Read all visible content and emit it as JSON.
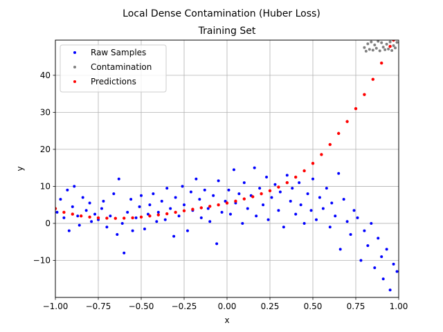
{
  "chart_data": {
    "type": "scatter",
    "suptitle": "Local Dense Contamination (Huber Loss)",
    "title": "Training Set",
    "xlabel": "x",
    "ylabel": "y",
    "xlim": [
      -1.0,
      1.0
    ],
    "ylim": [
      -20,
      49.5
    ],
    "grid": true,
    "legend_position": "top-left",
    "x_ticks": [
      -1.0,
      -0.75,
      -0.5,
      -0.25,
      0.0,
      0.25,
      0.5,
      0.75,
      1.0
    ],
    "x_tick_labels": [
      "−1.00",
      "−0.75",
      "−0.50",
      "−0.25",
      "0.00",
      "0.25",
      "0.50",
      "0.75",
      "1.00"
    ],
    "y_ticks": [
      -10,
      0,
      10,
      20,
      30,
      40
    ],
    "y_tick_labels": [
      "−10",
      "0",
      "10",
      "20",
      "30",
      "40"
    ],
    "series": [
      {
        "name": "Raw Samples",
        "color": "#0000ff",
        "points": [
          [
            -0.99,
            3.0
          ],
          [
            -0.97,
            6.5
          ],
          [
            -0.95,
            1.5
          ],
          [
            -0.93,
            9.0
          ],
          [
            -0.92,
            -2.0
          ],
          [
            -0.9,
            4.5
          ],
          [
            -0.89,
            10.0
          ],
          [
            -0.87,
            2.0
          ],
          [
            -0.86,
            -0.5
          ],
          [
            -0.84,
            7.0
          ],
          [
            -0.82,
            3.5
          ],
          [
            -0.8,
            5.5
          ],
          [
            -0.79,
            0.5
          ],
          [
            -0.77,
            2.5
          ],
          [
            -0.75,
            1.0
          ],
          [
            -0.73,
            4.0
          ],
          [
            -0.72,
            6.0
          ],
          [
            -0.7,
            -1.0
          ],
          [
            -0.68,
            2.0
          ],
          [
            -0.66,
            8.0
          ],
          [
            -0.64,
            -3.0
          ],
          [
            -0.63,
            12.0
          ],
          [
            -0.61,
            0.0
          ],
          [
            -0.6,
            -8.0
          ],
          [
            -0.58,
            3.0
          ],
          [
            -0.56,
            6.5
          ],
          [
            -0.55,
            -2.0
          ],
          [
            -0.53,
            1.5
          ],
          [
            -0.51,
            4.5
          ],
          [
            -0.5,
            7.5
          ],
          [
            -0.48,
            -1.5
          ],
          [
            -0.46,
            2.5
          ],
          [
            -0.45,
            5.0
          ],
          [
            -0.43,
            8.0
          ],
          [
            -0.41,
            0.5
          ],
          [
            -0.4,
            3.0
          ],
          [
            -0.38,
            6.0
          ],
          [
            -0.36,
            1.0
          ],
          [
            -0.35,
            9.5
          ],
          [
            -0.33,
            4.0
          ],
          [
            -0.31,
            -3.5
          ],
          [
            -0.3,
            7.0
          ],
          [
            -0.28,
            2.0
          ],
          [
            -0.26,
            10.0
          ],
          [
            -0.25,
            5.0
          ],
          [
            -0.23,
            -2.0
          ],
          [
            -0.21,
            8.5
          ],
          [
            -0.2,
            3.5
          ],
          [
            -0.18,
            12.0
          ],
          [
            -0.16,
            6.5
          ],
          [
            -0.15,
            1.5
          ],
          [
            -0.13,
            9.0
          ],
          [
            -0.11,
            4.0
          ],
          [
            -0.1,
            0.5
          ],
          [
            -0.08,
            7.5
          ],
          [
            -0.06,
            -5.5
          ],
          [
            -0.05,
            11.5
          ],
          [
            -0.03,
            3.0
          ],
          [
            -0.01,
            6.0
          ],
          [
            0.01,
            9.0
          ],
          [
            0.02,
            2.5
          ],
          [
            0.04,
            14.5
          ],
          [
            0.05,
            5.5
          ],
          [
            0.07,
            8.0
          ],
          [
            0.09,
            0.0
          ],
          [
            0.1,
            11.0
          ],
          [
            0.12,
            4.0
          ],
          [
            0.14,
            7.5
          ],
          [
            0.16,
            15.0
          ],
          [
            0.17,
            2.0
          ],
          [
            0.19,
            9.5
          ],
          [
            0.21,
            5.0
          ],
          [
            0.23,
            12.5
          ],
          [
            0.24,
            1.0
          ],
          [
            0.26,
            7.0
          ],
          [
            0.28,
            10.5
          ],
          [
            0.3,
            3.5
          ],
          [
            0.31,
            8.5
          ],
          [
            0.33,
            -1.0
          ],
          [
            0.35,
            13.0
          ],
          [
            0.37,
            6.0
          ],
          [
            0.38,
            9.5
          ],
          [
            0.4,
            2.5
          ],
          [
            0.42,
            11.0
          ],
          [
            0.43,
            5.0
          ],
          [
            0.45,
            0.0
          ],
          [
            0.47,
            8.0
          ],
          [
            0.49,
            3.5
          ],
          [
            0.5,
            12.0
          ],
          [
            0.52,
            1.0
          ],
          [
            0.54,
            7.0
          ],
          [
            0.56,
            4.0
          ],
          [
            0.58,
            9.5
          ],
          [
            0.6,
            -1.0
          ],
          [
            0.61,
            5.5
          ],
          [
            0.63,
            2.0
          ],
          [
            0.65,
            13.5
          ],
          [
            0.66,
            -7.0
          ],
          [
            0.68,
            6.5
          ],
          [
            0.7,
            0.5
          ],
          [
            0.72,
            -3.0
          ],
          [
            0.74,
            3.5
          ],
          [
            0.76,
            1.5
          ],
          [
            0.78,
            -10.0
          ],
          [
            0.8,
            -2.0
          ],
          [
            0.82,
            -6.0
          ],
          [
            0.84,
            0.0
          ],
          [
            0.86,
            -12.0
          ],
          [
            0.88,
            -4.0
          ],
          [
            0.9,
            -9.0
          ],
          [
            0.91,
            -15.0
          ],
          [
            0.93,
            -7.0
          ],
          [
            0.95,
            -18.0
          ],
          [
            0.97,
            -11.0
          ],
          [
            0.99,
            -13.0
          ]
        ]
      },
      {
        "name": "Contamination",
        "color": "#808080",
        "points": [
          [
            0.8,
            47.5
          ],
          [
            0.81,
            46.5
          ],
          [
            0.82,
            48.5
          ],
          [
            0.83,
            47.0
          ],
          [
            0.84,
            49.0
          ],
          [
            0.85,
            46.8
          ],
          [
            0.86,
            48.2
          ],
          [
            0.87,
            47.3
          ],
          [
            0.88,
            49.2
          ],
          [
            0.89,
            46.6
          ],
          [
            0.9,
            48.8
          ],
          [
            0.91,
            47.6
          ],
          [
            0.92,
            46.9
          ],
          [
            0.93,
            48.4
          ],
          [
            0.94,
            47.1
          ],
          [
            0.95,
            49.0
          ],
          [
            0.96,
            46.7
          ],
          [
            0.97,
            48.0
          ],
          [
            0.98,
            47.4
          ],
          [
            0.99,
            48.9
          ]
        ]
      },
      {
        "name": "Predictions",
        "color": "#ff0000",
        "points": [
          [
            -1.0,
            4.0
          ],
          [
            -0.95,
            3.0
          ],
          [
            -0.9,
            2.5
          ],
          [
            -0.85,
            2.0
          ],
          [
            -0.8,
            1.7
          ],
          [
            -0.75,
            1.5
          ],
          [
            -0.7,
            1.4
          ],
          [
            -0.65,
            1.35
          ],
          [
            -0.6,
            1.4
          ],
          [
            -0.55,
            1.5
          ],
          [
            -0.5,
            1.7
          ],
          [
            -0.45,
            2.0
          ],
          [
            -0.4,
            2.3
          ],
          [
            -0.35,
            2.6
          ],
          [
            -0.3,
            3.0
          ],
          [
            -0.25,
            3.4
          ],
          [
            -0.2,
            3.8
          ],
          [
            -0.15,
            4.2
          ],
          [
            -0.1,
            4.6
          ],
          [
            -0.05,
            5.0
          ],
          [
            0.0,
            5.5
          ],
          [
            0.05,
            6.0
          ],
          [
            0.1,
            6.6
          ],
          [
            0.15,
            7.2
          ],
          [
            0.2,
            8.0
          ],
          [
            0.25,
            8.8
          ],
          [
            0.3,
            9.8
          ],
          [
            0.35,
            11.0
          ],
          [
            0.4,
            12.5
          ],
          [
            0.45,
            14.2
          ],
          [
            0.5,
            16.2
          ],
          [
            0.55,
            18.6
          ],
          [
            0.6,
            21.3
          ],
          [
            0.65,
            24.3
          ],
          [
            0.7,
            27.5
          ],
          [
            0.75,
            31.0
          ],
          [
            0.8,
            34.8
          ],
          [
            0.85,
            38.9
          ],
          [
            0.9,
            43.3
          ],
          [
            0.95,
            47.8
          ],
          [
            0.97,
            49.5
          ]
        ]
      }
    ]
  }
}
